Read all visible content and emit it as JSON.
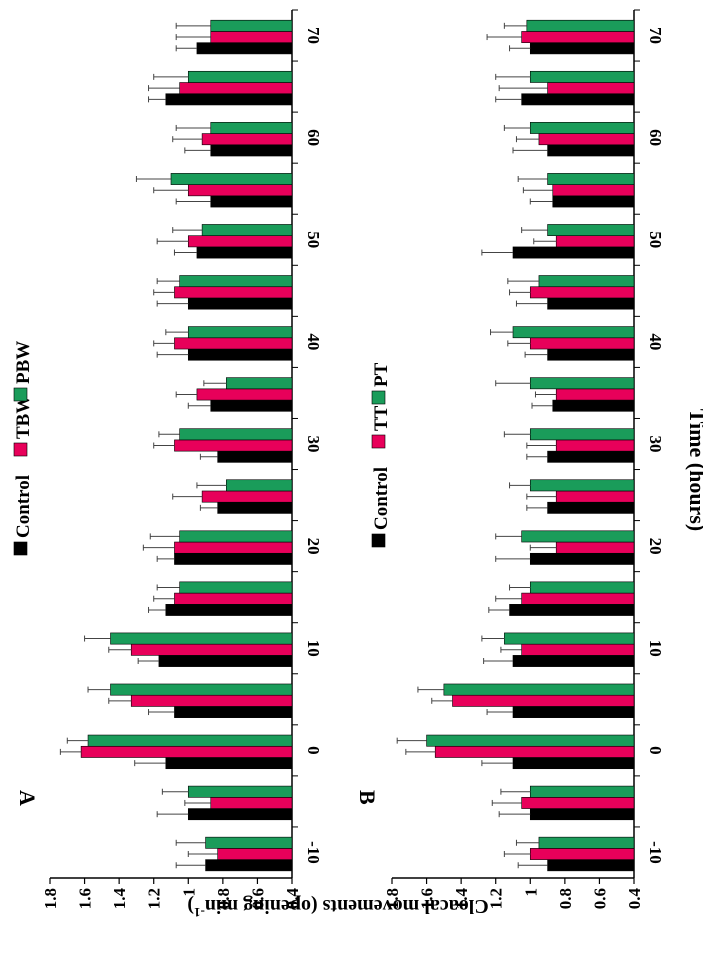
{
  "figure": {
    "y_axis_label": "Cloacal movements (opening min",
    "y_axis_label_sup": "-1",
    "y_axis_label_close": ")",
    "x_axis_label": "Time (hours)"
  },
  "colors": {
    "control": "#000000",
    "treatment": "#e8005a",
    "third": "#1a9c5a",
    "error_bar": "#444444"
  },
  "chart_data": [
    {
      "type": "bar",
      "panel": "A",
      "orientation": "rotated 90° clockwise (time axis vertical at right, response axis horizontal at top)",
      "x": [
        -10,
        -5,
        0,
        5,
        10,
        15,
        20,
        25,
        30,
        35,
        40,
        45,
        50,
        55,
        60,
        65,
        70
      ],
      "xlabel": "Time (hours)",
      "x_ticks": [
        "-10",
        "0",
        "10",
        "20",
        "30",
        "40",
        "50",
        "60",
        "70"
      ],
      "ylabel": "Cloacal movements (opening min-1)",
      "ylim": [
        0.4,
        1.8
      ],
      "y_ticks": [
        "1.8",
        "1.6",
        "1.4",
        "1.2",
        "1",
        "0.8",
        "0.6",
        "0.4"
      ],
      "legend_position": "top",
      "series": [
        {
          "name": "Control",
          "color": "#000000",
          "values": [
            0.9,
            1.0,
            1.13,
            1.08,
            1.17,
            1.13,
            1.08,
            0.83,
            0.83,
            0.87,
            1.0,
            1.0,
            0.95,
            0.87,
            0.87,
            1.13,
            0.95
          ],
          "errors": [
            0.17,
            0.18,
            0.18,
            0.15,
            0.12,
            0.1,
            0.1,
            0.1,
            0.1,
            0.13,
            0.18,
            0.18,
            0.13,
            0.2,
            0.15,
            0.1,
            0.12
          ]
        },
        {
          "name": "TBW",
          "color": "#e8005a",
          "values": [
            0.83,
            0.87,
            1.62,
            1.33,
            1.33,
            1.08,
            1.08,
            0.92,
            1.08,
            0.95,
            1.08,
            1.08,
            1.0,
            1.0,
            0.92,
            1.05,
            0.87
          ],
          "errors": [
            0.17,
            0.15,
            0.12,
            0.13,
            0.13,
            0.12,
            0.18,
            0.17,
            0.12,
            0.12,
            0.12,
            0.12,
            0.18,
            0.2,
            0.17,
            0.18,
            0.2
          ]
        },
        {
          "name": "PBW",
          "color": "#1a9c5a",
          "values": [
            0.9,
            1.0,
            1.58,
            1.45,
            1.45,
            1.05,
            1.05,
            0.78,
            1.05,
            0.78,
            1.0,
            1.05,
            0.92,
            1.1,
            0.87,
            1.0,
            0.87
          ],
          "errors": [
            0.17,
            0.15,
            0.12,
            0.13,
            0.15,
            0.13,
            0.17,
            0.17,
            0.12,
            0.13,
            0.13,
            0.13,
            0.17,
            0.2,
            0.2,
            0.2,
            0.2
          ]
        }
      ]
    },
    {
      "type": "bar",
      "panel": "B",
      "orientation": "rotated 90° clockwise (time axis vertical at right, response axis horizontal at top)",
      "x": [
        -10,
        -5,
        0,
        5,
        10,
        15,
        20,
        25,
        30,
        35,
        40,
        45,
        50,
        55,
        60,
        65,
        70
      ],
      "xlabel": "Time (hours)",
      "x_ticks": [
        "-10",
        "0",
        "10",
        "20",
        "30",
        "40",
        "50",
        "60",
        "70"
      ],
      "ylabel": "Cloacal movements (opening min-1)",
      "ylim": [
        0.4,
        1.8
      ],
      "y_ticks": [
        "1.8",
        "1.6",
        "1.4",
        "1.2",
        "1",
        "0.8",
        "0.6",
        "0.4"
      ],
      "legend_position": "top",
      "series": [
        {
          "name": "Control",
          "color": "#000000",
          "values": [
            0.9,
            1.0,
            1.1,
            1.1,
            1.1,
            1.12,
            1.0,
            0.9,
            0.9,
            0.87,
            0.9,
            0.9,
            1.1,
            0.87,
            0.9,
            1.05,
            1.0
          ],
          "errors": [
            0.17,
            0.18,
            0.18,
            0.15,
            0.17,
            0.12,
            0.2,
            0.12,
            0.12,
            0.12,
            0.13,
            0.18,
            0.18,
            0.13,
            0.2,
            0.15,
            0.12
          ]
        },
        {
          "name": "TT",
          "color": "#e8005a",
          "values": [
            1.0,
            1.05,
            1.55,
            1.45,
            1.05,
            1.05,
            0.85,
            0.85,
            0.85,
            0.85,
            1.0,
            1.0,
            0.85,
            0.87,
            0.95,
            0.9,
            1.05
          ],
          "errors": [
            0.15,
            0.17,
            0.17,
            0.12,
            0.12,
            0.15,
            0.15,
            0.17,
            0.17,
            0.12,
            0.13,
            0.12,
            0.13,
            0.17,
            0.13,
            0.28,
            0.2
          ]
        },
        {
          "name": "PT",
          "color": "#1a9c5a",
          "values": [
            0.95,
            1.0,
            1.6,
            1.5,
            1.15,
            1.0,
            1.05,
            1.0,
            1.0,
            1.0,
            1.1,
            0.95,
            0.9,
            0.9,
            1.0,
            1.0,
            1.02
          ],
          "errors": [
            0.13,
            0.17,
            0.17,
            0.15,
            0.13,
            0.12,
            0.15,
            0.12,
            0.15,
            0.2,
            0.13,
            0.18,
            0.15,
            0.17,
            0.15,
            0.2,
            0.13
          ]
        }
      ]
    }
  ]
}
